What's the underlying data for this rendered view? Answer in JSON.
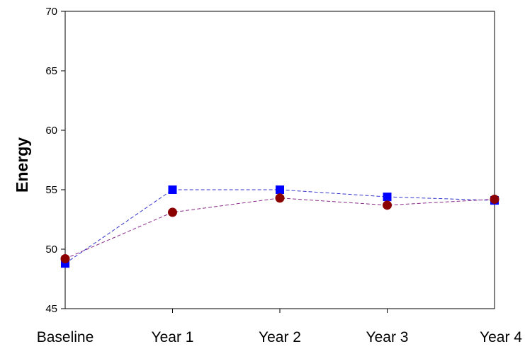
{
  "chart_data": {
    "type": "line",
    "categories": [
      "Baseline",
      "Year 1",
      "Year 2",
      "Year 3",
      "Year 4"
    ],
    "ylabel": "Energy",
    "ylim": [
      45,
      70
    ],
    "yticks": [
      45,
      50,
      55,
      60,
      65,
      70
    ],
    "grid": false,
    "series": [
      {
        "marker": "square",
        "color": "#0000ff",
        "line_color": "#3333cc",
        "line_style": "dashed",
        "values": [
          48.8,
          55.0,
          55.0,
          54.4,
          54.1
        ]
      },
      {
        "marker": "circle",
        "color": "#8b0000",
        "line_color": "#8b2a8b",
        "line_style": "dashed",
        "values": [
          49.2,
          53.1,
          54.3,
          53.7,
          54.2
        ]
      }
    ]
  }
}
